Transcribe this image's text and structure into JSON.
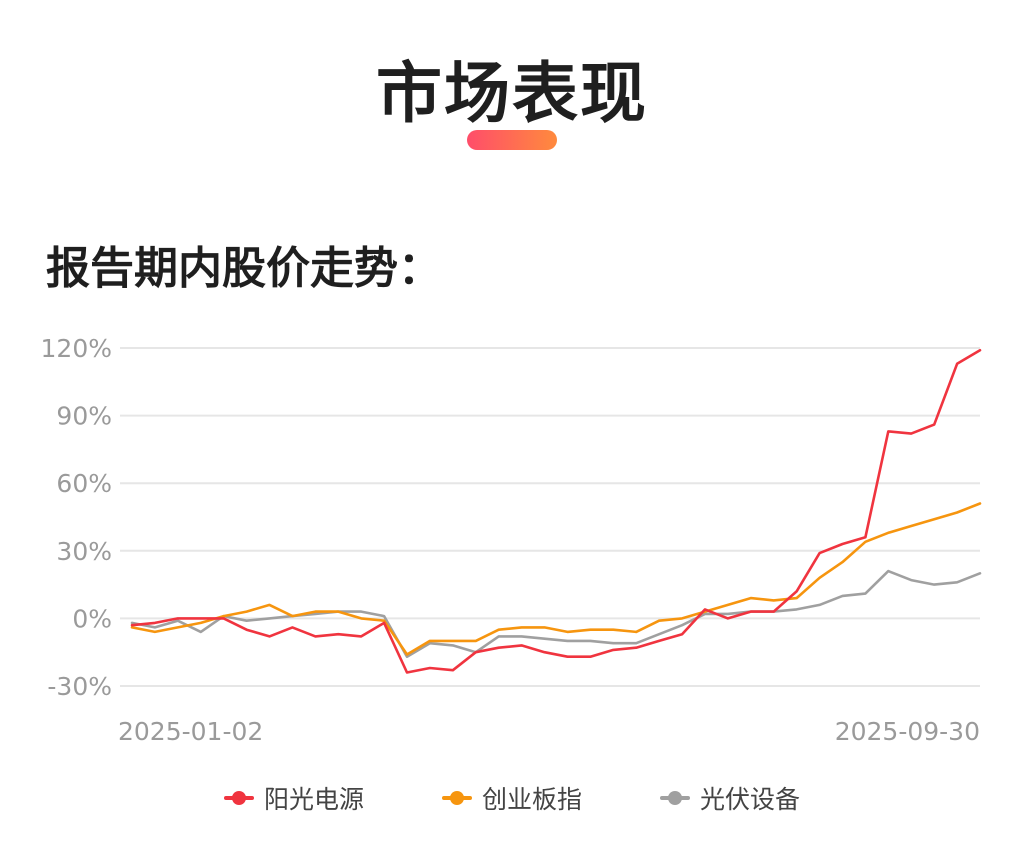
{
  "header": {
    "title": "市场表现",
    "accent_color": "#ff5a5f"
  },
  "section": {
    "title": "报告期内股价走势："
  },
  "chart_data": {
    "type": "line",
    "title": "",
    "xlabel": "",
    "ylabel": "",
    "x_tick_labels": [
      "2025-01-02",
      "2025-09-30"
    ],
    "y_ticks": [
      -30,
      0,
      30,
      60,
      90,
      120
    ],
    "y_tick_labels": [
      "-30%",
      "0%",
      "30%",
      "60%",
      "90%",
      "120%"
    ],
    "ylim": [
      -30,
      120
    ],
    "grid": true,
    "legend_position": "bottom",
    "series": [
      {
        "name": "阳光电源",
        "color": "#f0343f",
        "values": [
          -3,
          -2,
          0,
          0,
          0,
          -5,
          -8,
          -4,
          -8,
          -7,
          -8,
          -2,
          -24,
          -22,
          -23,
          -15,
          -13,
          -12,
          -15,
          -17,
          -17,
          -14,
          -13,
          -10,
          -7,
          4,
          0,
          3,
          3,
          12,
          29,
          33,
          36,
          83,
          82,
          86,
          113,
          119
        ]
      },
      {
        "name": "创业板指",
        "color": "#f6950f",
        "values": [
          -4,
          -6,
          -4,
          -2,
          1,
          3,
          6,
          1,
          3,
          3,
          0,
          -1,
          -16,
          -10,
          -10,
          -10,
          -5,
          -4,
          -4,
          -6,
          -5,
          -5,
          -6,
          -1,
          0,
          3,
          6,
          9,
          8,
          9,
          18,
          25,
          34,
          38,
          41,
          44,
          47,
          51
        ]
      },
      {
        "name": "光伏设备",
        "color": "#a0a0a0",
        "values": [
          -2,
          -4,
          -1,
          -6,
          1,
          -1,
          0,
          1,
          2,
          3,
          3,
          1,
          -17,
          -11,
          -12,
          -15,
          -8,
          -8,
          -9,
          -10,
          -10,
          -11,
          -11,
          -7,
          -3,
          2,
          2,
          3,
          3,
          4,
          6,
          10,
          11,
          21,
          17,
          15,
          16,
          20
        ]
      }
    ]
  }
}
